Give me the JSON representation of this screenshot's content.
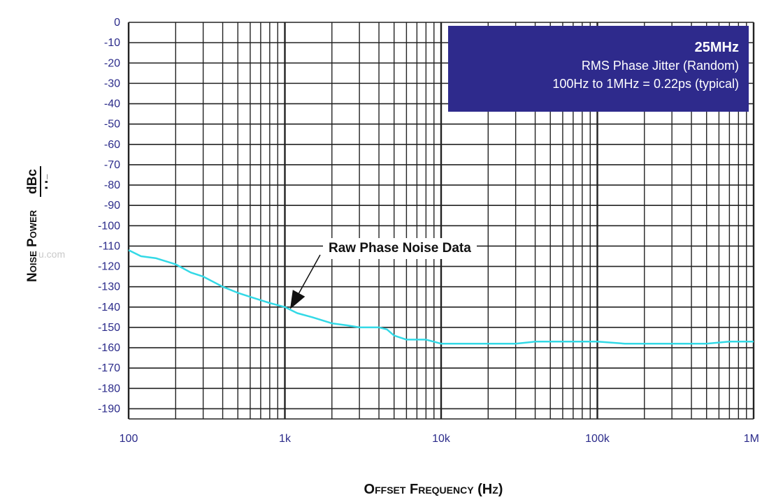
{
  "chart_data": {
    "type": "line",
    "title": "",
    "xlabel": "Offset Frequency (Hz)",
    "ylabel": {
      "main": "Noise Power",
      "unit_numerator": "dBc",
      "unit_denominator": "Hz"
    },
    "x_scale": "log",
    "xlim": [
      100,
      1000000
    ],
    "ylim": [
      -195,
      0
    ],
    "x_ticks": [
      {
        "value": 100,
        "label": "100"
      },
      {
        "value": 1000,
        "label": "1k"
      },
      {
        "value": 10000,
        "label": "10k"
      },
      {
        "value": 100000,
        "label": "100k"
      },
      {
        "value": 1000000,
        "label": "1M"
      }
    ],
    "y_ticks": [
      0,
      -10,
      -20,
      -30,
      -40,
      -50,
      -60,
      -70,
      -80,
      -90,
      -100,
      -110,
      -120,
      -130,
      -140,
      -150,
      -160,
      -170,
      -180,
      -190
    ],
    "grid": true,
    "series": [
      {
        "color": "#33d9e6",
        "x": [
          100,
          120,
          150,
          200,
          250,
          300,
          400,
          500,
          600,
          800,
          1000,
          1200,
          1500,
          2000,
          2500,
          3000,
          4000,
          4500,
          5000,
          6000,
          7000,
          8000,
          10000,
          15000,
          20000,
          30000,
          40000,
          60000,
          80000,
          100000,
          150000,
          200000,
          300000,
          500000,
          700000,
          1000000
        ],
        "y": [
          -112,
          -115,
          -116,
          -119,
          -123,
          -125,
          -130,
          -133,
          -135,
          -138,
          -140,
          -143,
          -145,
          -148,
          -149,
          -150,
          -150,
          -151,
          -154,
          -156,
          -156,
          -156,
          -158,
          -158,
          -158,
          -158,
          -157,
          -157,
          -157,
          -157,
          -158,
          -158,
          -158,
          -158,
          -157,
          -157
        ]
      }
    ],
    "annotations": {
      "box_title": "25MHz",
      "box_line1": "RMS Phase Jitter (Random)",
      "box_line2": "100Hz to 1MHz = 0.22ps (typical)",
      "arrow_label": "Raw Phase Noise Data",
      "arrow_target": {
        "x": 1080,
        "y": -141
      }
    },
    "watermark": "u.com"
  }
}
